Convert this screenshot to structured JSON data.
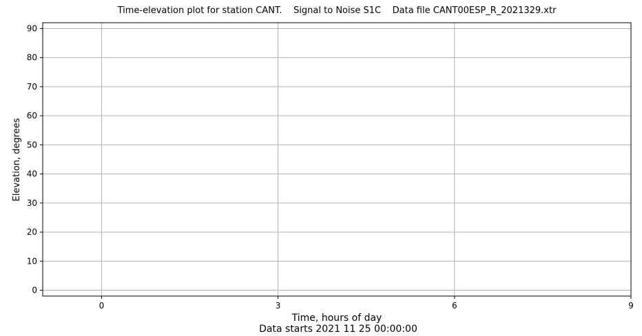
{
  "chart_data": {
    "type": "scatter",
    "title": "Time-elevation plot for station CANT.    Signal to Noise S1C    Data file CANT00ESP_R_2021329.xtr",
    "xlabel": "Time, hours of day",
    "xlabel_secondary": "Data starts 2021 11 25 00:00:00",
    "ylabel": "Elevation, degrees",
    "xlim": [
      -1,
      9
    ],
    "ylim": [
      -2,
      92
    ],
    "x_ticks": [
      0,
      3,
      6,
      9
    ],
    "x_tick_labels": [
      "0",
      "3",
      "6",
      "9"
    ],
    "y_ticks": [
      0,
      10,
      20,
      30,
      40,
      50,
      60,
      70,
      80,
      90
    ],
    "y_tick_labels": [
      "0",
      "10",
      "20",
      "30",
      "40",
      "50",
      "60",
      "70",
      "80",
      "90"
    ],
    "grid": true,
    "series": []
  },
  "colors": {
    "grid": "#b0b0b0",
    "axes": "#000000",
    "background": "#ffffff"
  }
}
